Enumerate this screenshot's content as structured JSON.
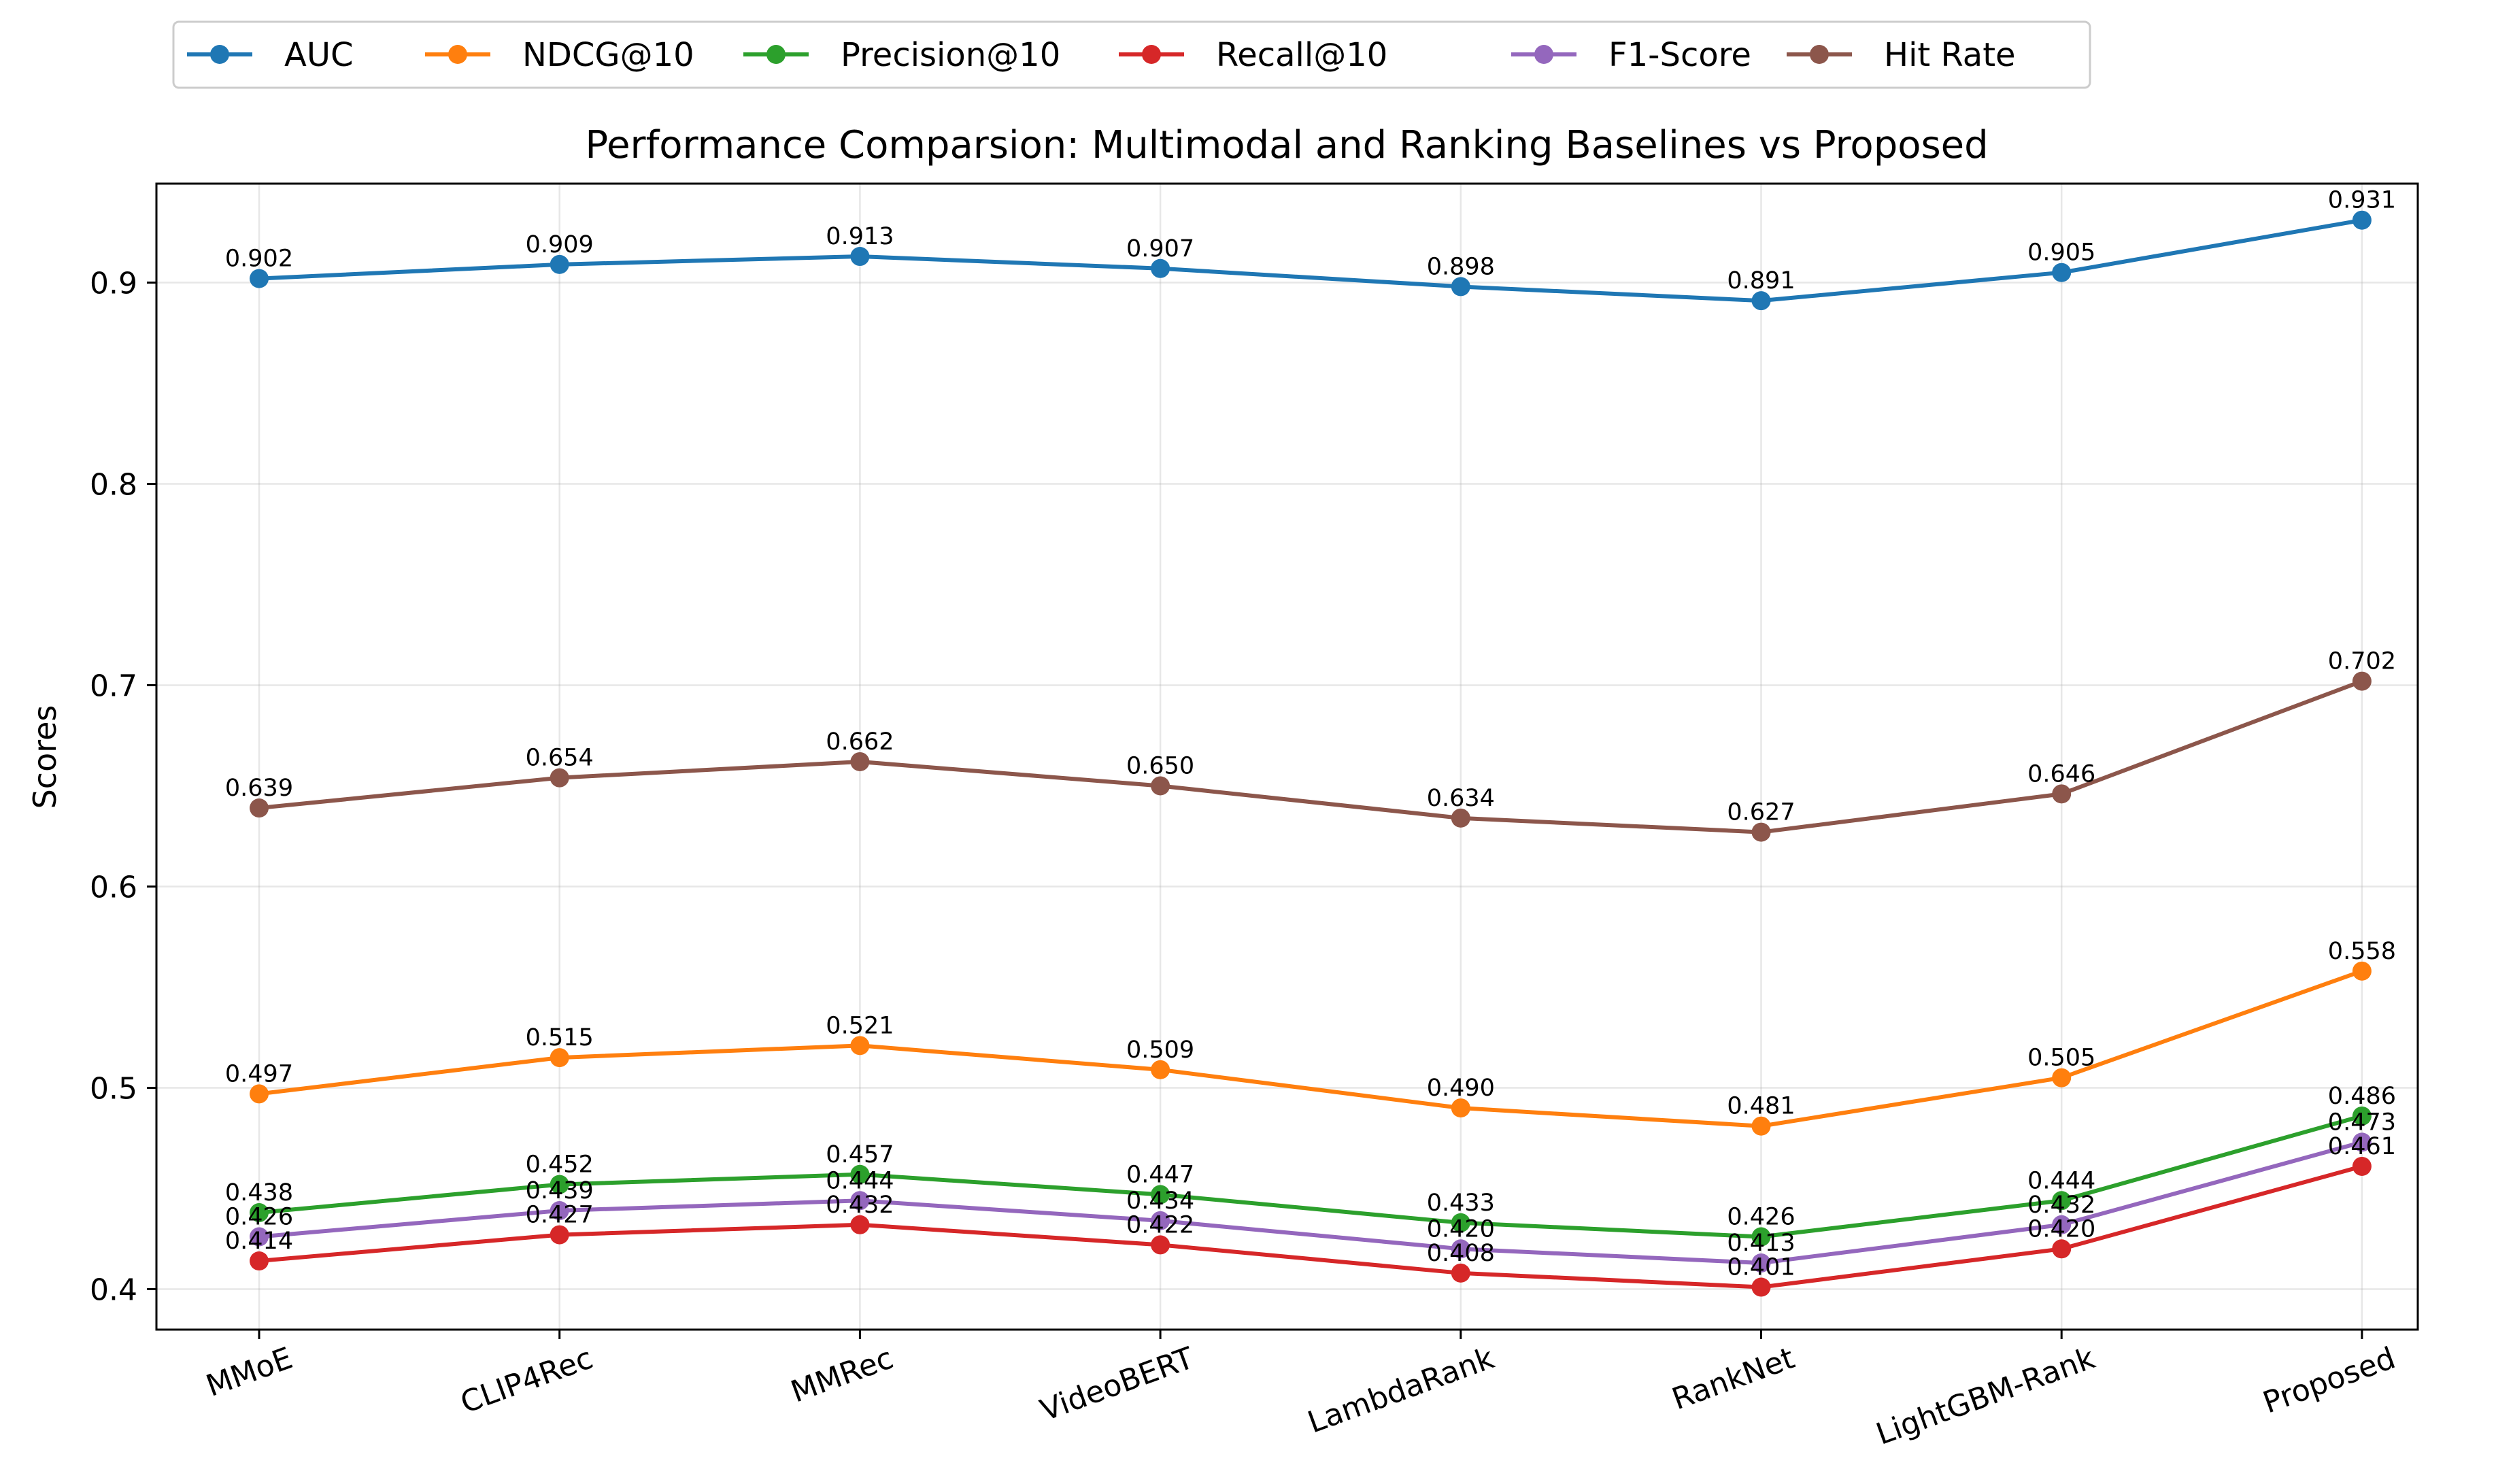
{
  "chart_data": {
    "type": "line",
    "title": "Performance Comparsion: Multimodal and Ranking Baselines vs Proposed",
    "xlabel": "",
    "ylabel": "Scores",
    "ylim": [
      0.38,
      0.95
    ],
    "yticks": [
      0.4,
      0.5,
      0.6,
      0.7,
      0.8,
      0.9
    ],
    "ytick_labels": [
      "0.4",
      "0.5",
      "0.6",
      "0.7",
      "0.8",
      "0.9"
    ],
    "grid": true,
    "legend_position": "top, above title, single row",
    "categories": [
      "MMoE",
      "CLIP4Rec",
      "MMRec",
      "VideoBERT",
      "LambdaRank",
      "RankNet",
      "LightGBM-Rank",
      "Proposed"
    ],
    "series": [
      {
        "name": "AUC",
        "color": "#1f77b4",
        "values": [
          0.902,
          0.909,
          0.913,
          0.907,
          0.898,
          0.891,
          0.905,
          0.931
        ]
      },
      {
        "name": "NDCG@10",
        "color": "#ff7f0e",
        "values": [
          0.497,
          0.515,
          0.521,
          0.509,
          0.49,
          0.481,
          0.505,
          0.558
        ]
      },
      {
        "name": "Precision@10",
        "color": "#2ca02c",
        "values": [
          0.438,
          0.452,
          0.457,
          0.447,
          0.433,
          0.426,
          0.444,
          0.486
        ]
      },
      {
        "name": "Recall@10",
        "color": "#d62728",
        "values": [
          0.414,
          0.427,
          0.432,
          0.422,
          0.408,
          0.401,
          0.42,
          0.461
        ]
      },
      {
        "name": "F1-Score",
        "color": "#9467bd",
        "values": [
          0.426,
          0.439,
          0.444,
          0.434,
          0.42,
          0.413,
          0.432,
          0.473
        ]
      },
      {
        "name": "Hit Rate",
        "color": "#8c564b",
        "values": [
          0.639,
          0.654,
          0.662,
          0.65,
          0.634,
          0.627,
          0.646,
          0.702
        ]
      }
    ]
  }
}
